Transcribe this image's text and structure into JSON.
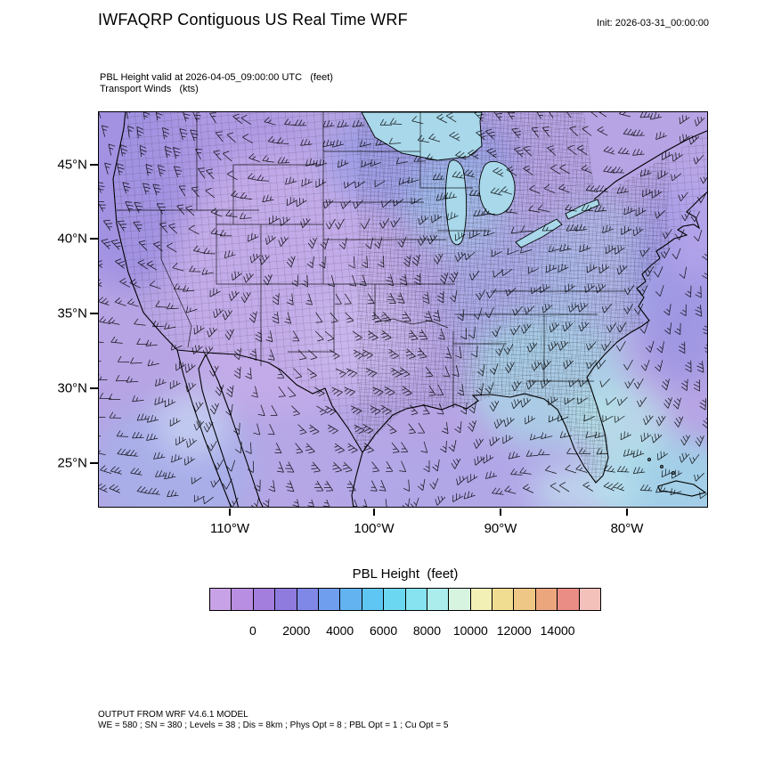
{
  "header": {
    "title": "IWFAQRP Contiguous US Real Time WRF",
    "init_label": "Init: 2026-03-31_00:00:00"
  },
  "subtitle": {
    "line1": "PBL Height valid at 2026-04-05_09:00:00 UTC   (feet)",
    "line2": "Transport Winds   (kts)"
  },
  "map": {
    "lat_ticks": [
      "45°N",
      "40°N",
      "35°N",
      "30°N",
      "25°N"
    ],
    "lon_ticks": [
      "110°W",
      "100°W",
      "90°W",
      "80°W"
    ]
  },
  "colorbar": {
    "title": "PBL Height  (feet)",
    "tick_labels": [
      "0",
      "2000",
      "4000",
      "6000",
      "8000",
      "10000",
      "12000",
      "14000"
    ],
    "colors": [
      "#c8a2e6",
      "#b78ee1",
      "#a47edd",
      "#8f7ade",
      "#7f88e6",
      "#709eee",
      "#63b3f1",
      "#5fc6f3",
      "#6cd7f1",
      "#86e3ef",
      "#aaedec",
      "#d6f4e0",
      "#f3f0b5",
      "#f1dd92",
      "#eec685",
      "#eba67d",
      "#e98d85",
      "#f4c0ba"
    ]
  },
  "footer": {
    "line1": "OUTPUT FROM WRF V4.6.1 MODEL",
    "line2": "WE = 580 ; SN = 380 ; Levels = 38 ; Dis = 8km ; Phys Opt = 8 ; PBL Opt = 1 ; Cu Opt = 5"
  },
  "chart_data": {
    "type": "heatmap",
    "title": "IWFAQRP Contiguous US Real Time WRF",
    "subtitle": "PBL Height valid at 2026-04-05_09:00:00 UTC (feet); Transport Winds (kts)",
    "init_time": "2026-03-31_00:00:00",
    "valid_time": "2026-04-05_09:00:00 UTC",
    "variable": "PBL Height",
    "units": "feet",
    "wind_overlay": "Transport Winds (kts), wind barbs over full domain",
    "x": {
      "label": "longitude",
      "ticks": [
        "110°W",
        "100°W",
        "90°W",
        "80°W"
      ]
    },
    "y": {
      "label": "latitude",
      "ticks": [
        "45°N",
        "40°N",
        "35°N",
        "30°N",
        "25°N"
      ]
    },
    "colorbar": {
      "title": "PBL Height  (feet)",
      "tick_values": [
        0,
        2000,
        4000,
        6000,
        8000,
        10000,
        12000,
        14000
      ],
      "orientation": "horizontal",
      "n_cells": 18
    },
    "field_summary": "Nocturnal PBL heights mostly in the 0-2000 ft purple range across the CONUS, with blue/cyan patches of roughly 2000-6000 ft over the Southeast, the Great Lakes, the Gulf of Mexico and offshore Atlantic/Pacific waters",
    "model_info": {
      "model": "WRF V4.6.1",
      "grid": "WE = 580 ; SN = 380 ; Levels = 38 ; Dis = 8km",
      "physics": "Phys Opt = 8 ; PBL Opt = 1 ; Cu Opt = 5"
    }
  }
}
